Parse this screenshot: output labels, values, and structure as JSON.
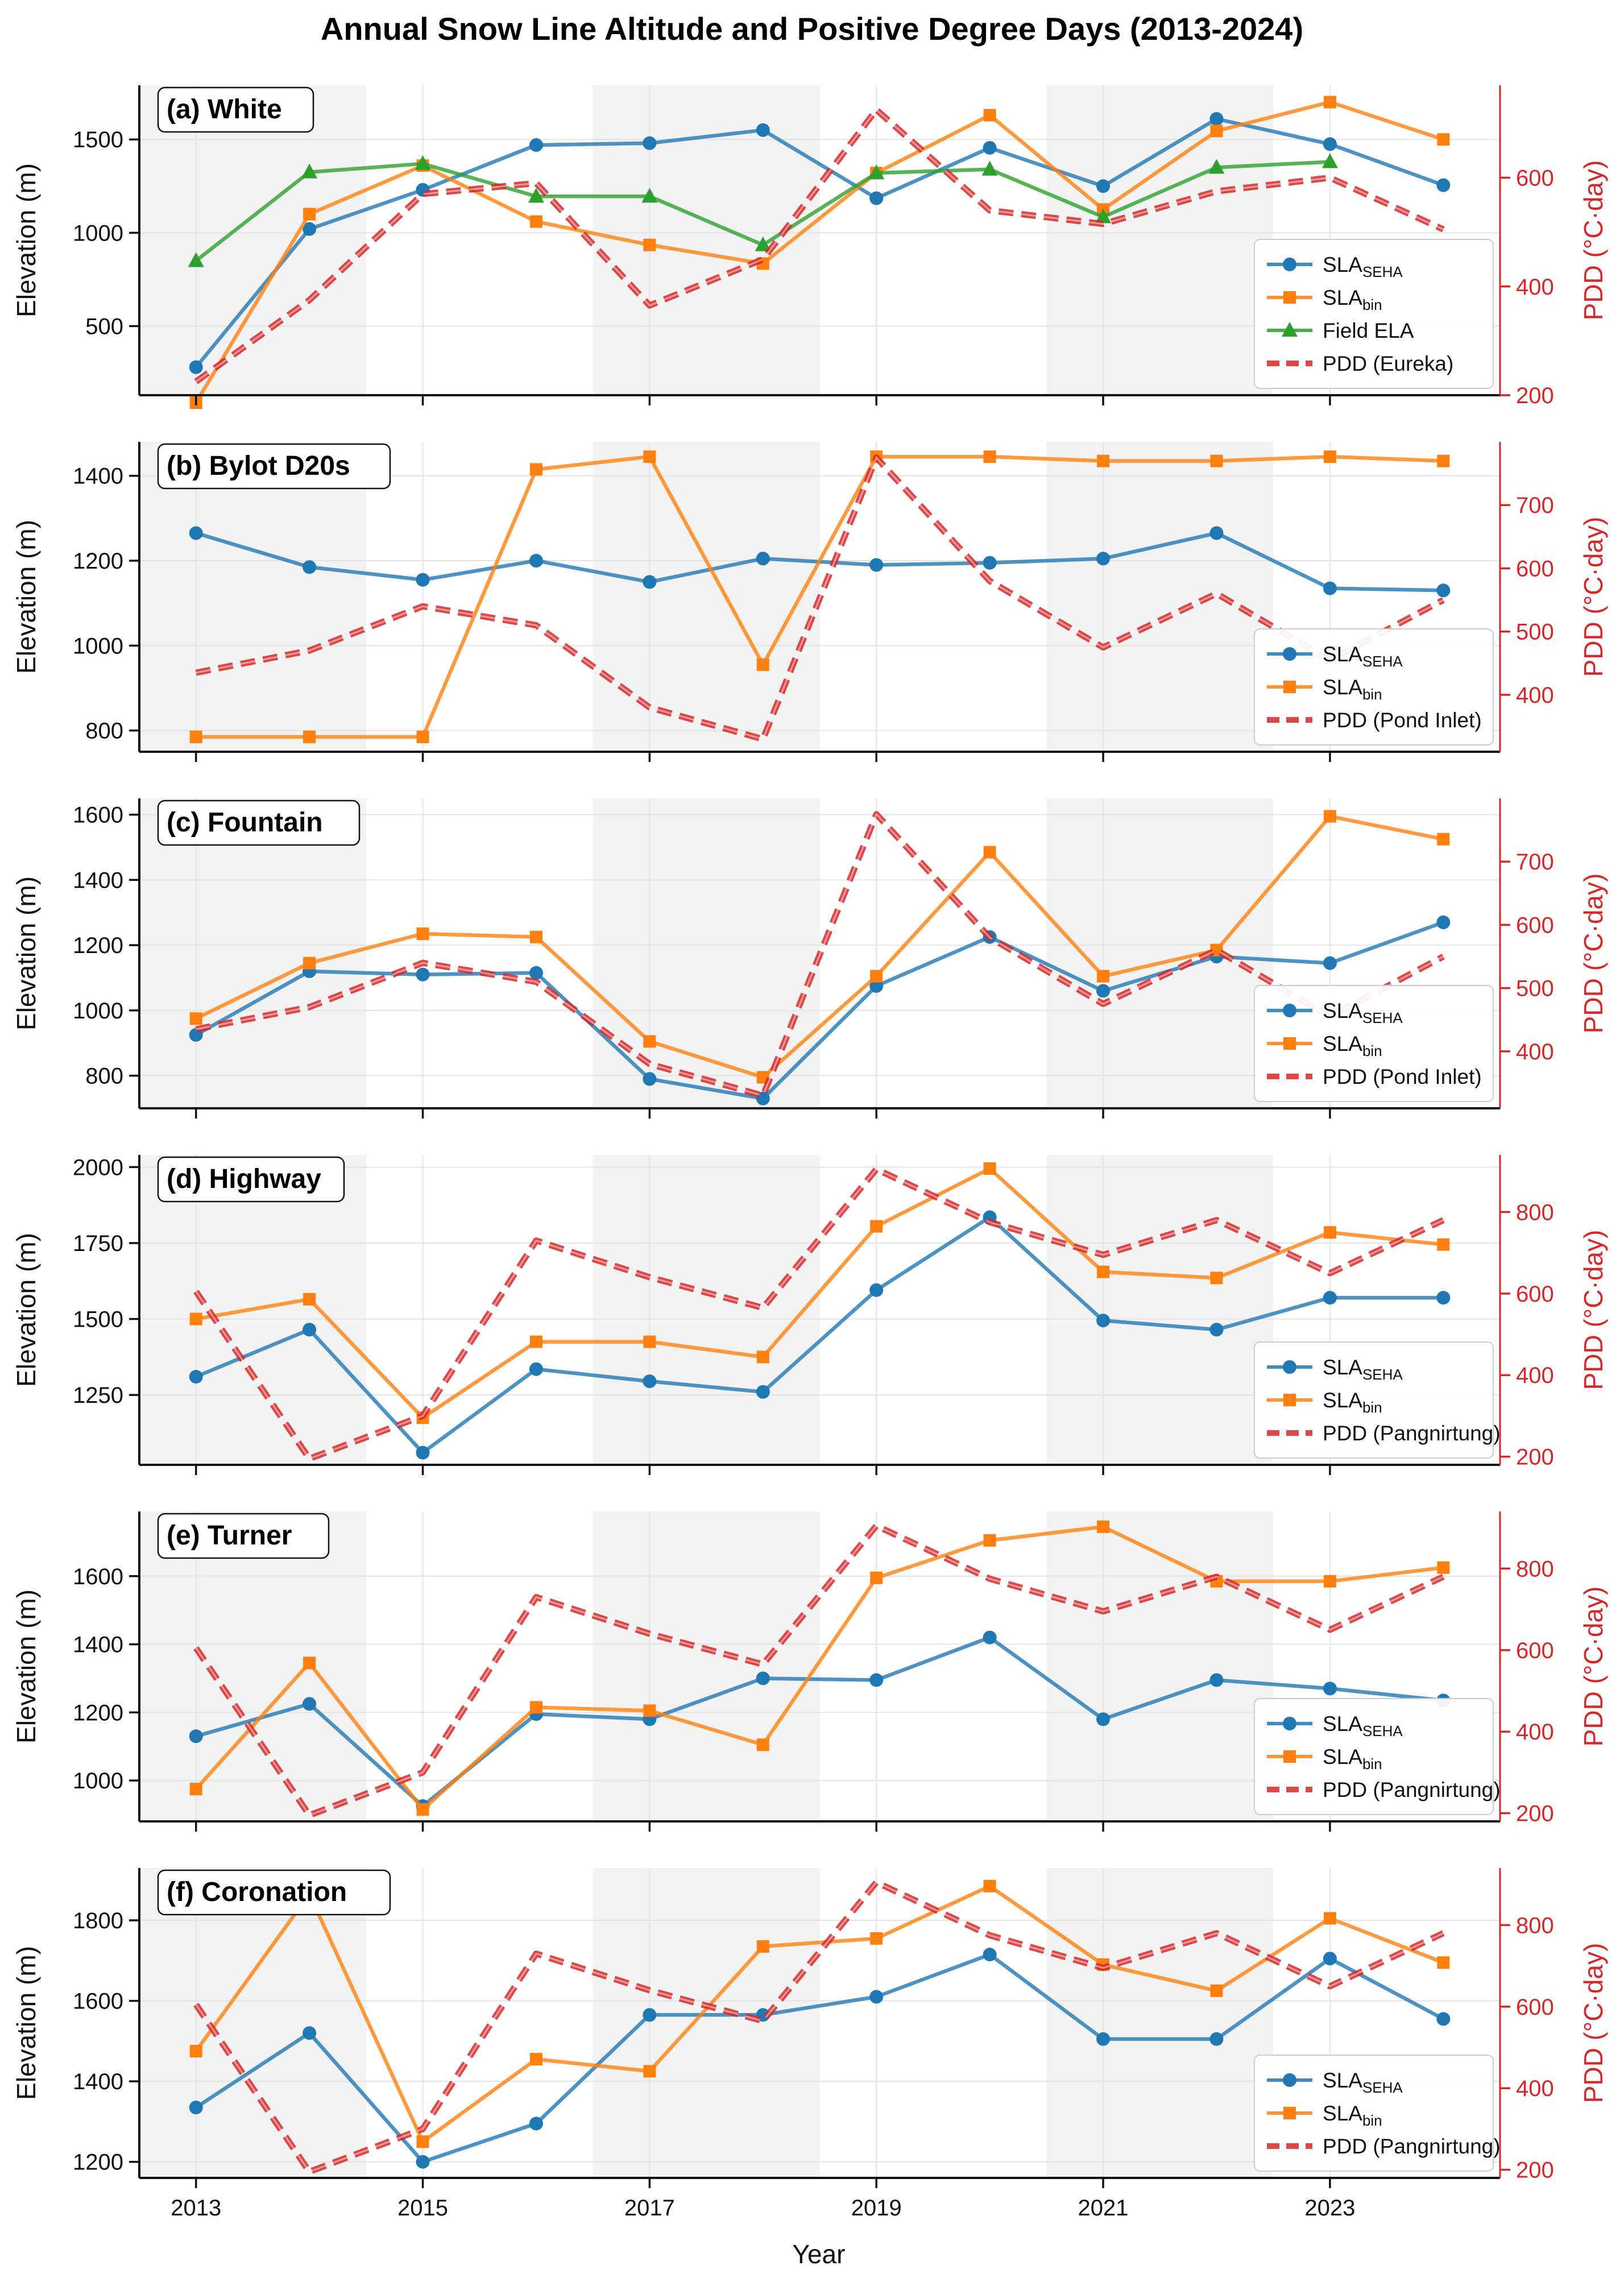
{
  "chart_data": {
    "type": "line",
    "title": "Annual Snow Line Altitude and Positive Degree Days (2013-2024)",
    "xlabel": "Year",
    "ylabel_left": "Elevation (m)",
    "ylabel_right": "PDD (°C·day)",
    "x": [
      2013,
      2014,
      2015,
      2016,
      2017,
      2018,
      2019,
      2020,
      2021,
      2022,
      2023,
      2024
    ],
    "xticks": [
      2013,
      2015,
      2017,
      2019,
      2021,
      2023
    ],
    "xlim": [
      2012.5,
      2024.5
    ],
    "shaded_periods": [
      [
        2012.5,
        2014.5
      ],
      [
        2016.5,
        2018.5
      ],
      [
        2020.5,
        2022.5
      ]
    ],
    "colors": {
      "sla_seha": "#1f77b4",
      "sla_bin": "#ff7f0e",
      "field_ela": "#2ca02c",
      "pdd": "#d62728",
      "shade": "#d9d9d9"
    },
    "panels": [
      {
        "title": "(a) White",
        "ylim": [
          130,
          1790
        ],
        "yticks": [
          500,
          1000,
          1500
        ],
        "y2lim": [
          200,
          770
        ],
        "y2ticks": [
          200,
          400,
          600
        ],
        "legend": "lower right",
        "series": [
          {
            "key": "seha",
            "name": "SLA",
            "sub": "SEHA",
            "color": "#1f77b4",
            "marker": "circle",
            "axis": "left",
            "values": [
              280,
              1020,
              1230,
              1470,
              1480,
              1550,
              1185,
              1455,
              1250,
              1610,
              1475,
              1255
            ]
          },
          {
            "key": "bin",
            "name": "SLA",
            "sub": "bin",
            "color": "#ff7f0e",
            "marker": "square",
            "axis": "left",
            "values": [
              90,
              1100,
              1360,
              1060,
              935,
              835,
              1320,
              1630,
              1125,
              1545,
              1700,
              1500
            ]
          },
          {
            "key": "ela",
            "name": "Field ELA",
            "sub": "",
            "color": "#2ca02c",
            "marker": "triangle",
            "axis": "left",
            "values": [
              850,
              1325,
              1370,
              1195,
              1195,
              935,
              1320,
              1340,
              1085,
              1350,
              1380,
              null
            ]
          },
          {
            "key": "pdd",
            "name": "PDD (Eureka)",
            "sub": "",
            "color": "#d62728",
            "marker": "none",
            "axis": "right",
            "values": [
              225,
              375,
              570,
              590,
              365,
              450,
              725,
              540,
              515,
              575,
              600,
              505
            ]
          }
        ]
      },
      {
        "title": "(b) Bylot D20s",
        "ylim": [
          750,
          1480
        ],
        "yticks": [
          800,
          1000,
          1200,
          1400
        ],
        "y2lim": [
          310,
          800
        ],
        "y2ticks": [
          400,
          500,
          600,
          700
        ],
        "legend": "lower right",
        "series": [
          {
            "key": "seha",
            "name": "SLA",
            "sub": "SEHA",
            "color": "#1f77b4",
            "marker": "circle",
            "axis": "left",
            "values": [
              1265,
              1185,
              1155,
              1200,
              1150,
              1205,
              1190,
              1195,
              1205,
              1265,
              1135,
              1130
            ]
          },
          {
            "key": "bin",
            "name": "SLA",
            "sub": "bin",
            "color": "#ff7f0e",
            "marker": "square",
            "axis": "left",
            "values": [
              785,
              785,
              785,
              1415,
              1445,
              955,
              1445,
              1445,
              1435,
              1435,
              1445,
              1435
            ]
          },
          {
            "key": "pdd",
            "name": "PDD (Pond Inlet)",
            "sub": "",
            "color": "#d62728",
            "marker": "none",
            "axis": "right",
            "values": [
              435,
              470,
              540,
              510,
              380,
              330,
              775,
              580,
              475,
              560,
              455,
              550
            ]
          }
        ]
      },
      {
        "title": "(c) Fountain",
        "ylim": [
          700,
          1650
        ],
        "yticks": [
          800,
          1000,
          1200,
          1400,
          1600
        ],
        "y2lim": [
          310,
          800
        ],
        "y2ticks": [
          400,
          500,
          600,
          700
        ],
        "legend": "lower right",
        "series": [
          {
            "key": "seha",
            "name": "SLA",
            "sub": "SEHA",
            "color": "#1f77b4",
            "marker": "circle",
            "axis": "left",
            "values": [
              925,
              1120,
              1110,
              1115,
              790,
              730,
              1075,
              1225,
              1060,
              1165,
              1145,
              1270
            ]
          },
          {
            "key": "bin",
            "name": "SLA",
            "sub": "bin",
            "color": "#ff7f0e",
            "marker": "square",
            "axis": "left",
            "values": [
              975,
              1145,
              1235,
              1225,
              905,
              795,
              1105,
              1485,
              1105,
              1185,
              1595,
              1525
            ]
          },
          {
            "key": "pdd",
            "name": "PDD (Pond Inlet)",
            "sub": "",
            "color": "#d62728",
            "marker": "none",
            "axis": "right",
            "values": [
              435,
              470,
              540,
              510,
              380,
              330,
              775,
              580,
              475,
              560,
              455,
              550
            ]
          }
        ]
      },
      {
        "title": "(d) Highway",
        "ylim": [
          1020,
          2040
        ],
        "yticks": [
          1250,
          1500,
          1750,
          2000
        ],
        "y2lim": [
          180,
          940
        ],
        "y2ticks": [
          200,
          400,
          600,
          800
        ],
        "legend": "lower right",
        "series": [
          {
            "key": "seha",
            "name": "SLA",
            "sub": "SEHA",
            "color": "#1f77b4",
            "marker": "circle",
            "axis": "left",
            "values": [
              1310,
              1465,
              1060,
              1335,
              1295,
              1260,
              1595,
              1835,
              1495,
              1465,
              1570,
              1570
            ]
          },
          {
            "key": "bin",
            "name": "SLA",
            "sub": "bin",
            "color": "#ff7f0e",
            "marker": "square",
            "axis": "left",
            "values": [
              1500,
              1565,
              1175,
              1425,
              1425,
              1375,
              1805,
              1995,
              1655,
              1635,
              1785,
              1745
            ]
          },
          {
            "key": "pdd",
            "name": "PDD (Pangnirtung)",
            "sub": "",
            "color": "#d62728",
            "marker": "none",
            "axis": "right",
            "values": [
              605,
              195,
              300,
              730,
              640,
              565,
              905,
              775,
              695,
              780,
              650,
              780
            ]
          }
        ]
      },
      {
        "title": "(e) Turner",
        "ylim": [
          880,
          1790
        ],
        "yticks": [
          1000,
          1200,
          1400,
          1600
        ],
        "y2lim": [
          180,
          940
        ],
        "y2ticks": [
          200,
          400,
          600,
          800
        ],
        "legend": "lower right",
        "series": [
          {
            "key": "seha",
            "name": "SLA",
            "sub": "SEHA",
            "color": "#1f77b4",
            "marker": "circle",
            "axis": "left",
            "values": [
              1130,
              1225,
              925,
              1195,
              1180,
              1300,
              1295,
              1420,
              1180,
              1295,
              1270,
              1235
            ]
          },
          {
            "key": "bin",
            "name": "SLA",
            "sub": "bin",
            "color": "#ff7f0e",
            "marker": "square",
            "axis": "left",
            "values": [
              975,
              1345,
              915,
              1215,
              1205,
              1105,
              1595,
              1705,
              1745,
              1585,
              1585,
              1625
            ]
          },
          {
            "key": "pdd",
            "name": "PDD (Pangnirtung)",
            "sub": "",
            "color": "#d62728",
            "marker": "none",
            "axis": "right",
            "values": [
              605,
              195,
              300,
              730,
              640,
              565,
              905,
              775,
              695,
              780,
              650,
              780
            ]
          }
        ]
      },
      {
        "title": "(f) Coronation",
        "ylim": [
          1160,
          1930
        ],
        "yticks": [
          1200,
          1400,
          1600,
          1800
        ],
        "y2lim": [
          180,
          940
        ],
        "y2ticks": [
          200,
          400,
          600,
          800
        ],
        "legend": "lower right",
        "series": [
          {
            "key": "seha",
            "name": "SLA",
            "sub": "SEHA",
            "color": "#1f77b4",
            "marker": "circle",
            "axis": "left",
            "values": [
              1335,
              1520,
              1200,
              1295,
              1565,
              1565,
              1610,
              1715,
              1505,
              1505,
              1705,
              1555
            ]
          },
          {
            "key": "bin",
            "name": "SLA",
            "sub": "bin",
            "color": "#ff7f0e",
            "marker": "square",
            "axis": "left",
            "values": [
              1475,
              1865,
              1250,
              1455,
              1425,
              1735,
              1755,
              1885,
              1690,
              1625,
              1805,
              1695
            ]
          },
          {
            "key": "pdd",
            "name": "PDD (Pangnirtung)",
            "sub": "",
            "color": "#d62728",
            "marker": "none",
            "axis": "right",
            "values": [
              605,
              195,
              300,
              730,
              640,
              565,
              905,
              775,
              695,
              780,
              650,
              780
            ]
          }
        ]
      }
    ]
  }
}
